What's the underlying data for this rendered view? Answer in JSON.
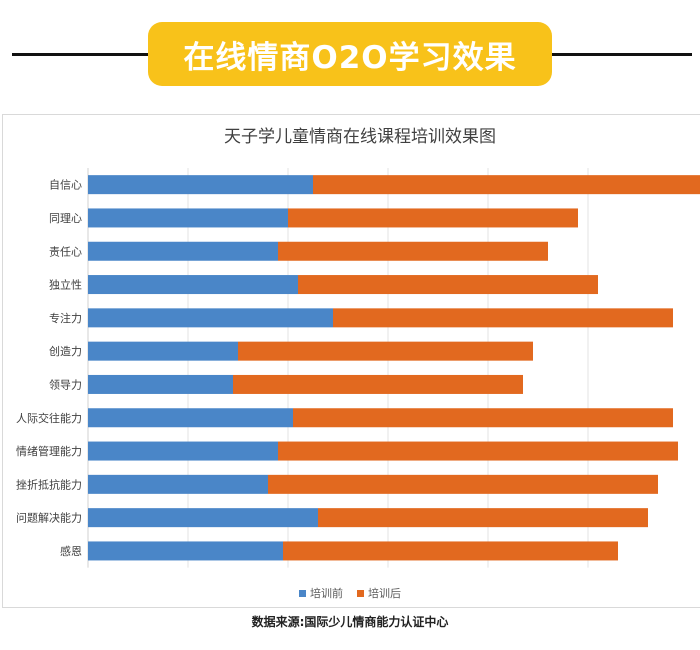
{
  "banner": {
    "title": "在线情商O2O学习效果"
  },
  "footer": {
    "source": "数据来源:国际少儿情商能力认证中心"
  },
  "chart_data": {
    "type": "bar",
    "orientation": "horizontal",
    "stacked": true,
    "title": "天子学儿童情商在线课程培训效果图",
    "xlabel": "",
    "ylabel": "",
    "xlim": [
      0,
      6.2
    ],
    "grid": true,
    "legend_position": "bottom",
    "categories": [
      "自信心",
      "同理心",
      "责任心",
      "独立性",
      "专注力",
      "创造力",
      "领导力",
      "人际交往能力",
      "情绪管理能力",
      "挫折抵抗能力",
      "问题解决能力",
      "感恩"
    ],
    "series": [
      {
        "name": "培训前",
        "color": "#4a86c8",
        "values": [
          2.25,
          2.0,
          1.9,
          2.1,
          2.45,
          1.5,
          1.45,
          2.05,
          1.9,
          1.8,
          2.3,
          1.95
        ]
      },
      {
        "name": "培训后",
        "color": "#e2691f",
        "values": [
          3.9,
          2.9,
          2.7,
          3.0,
          3.4,
          2.95,
          2.9,
          3.8,
          4.0,
          3.9,
          3.3,
          3.35
        ]
      }
    ]
  }
}
